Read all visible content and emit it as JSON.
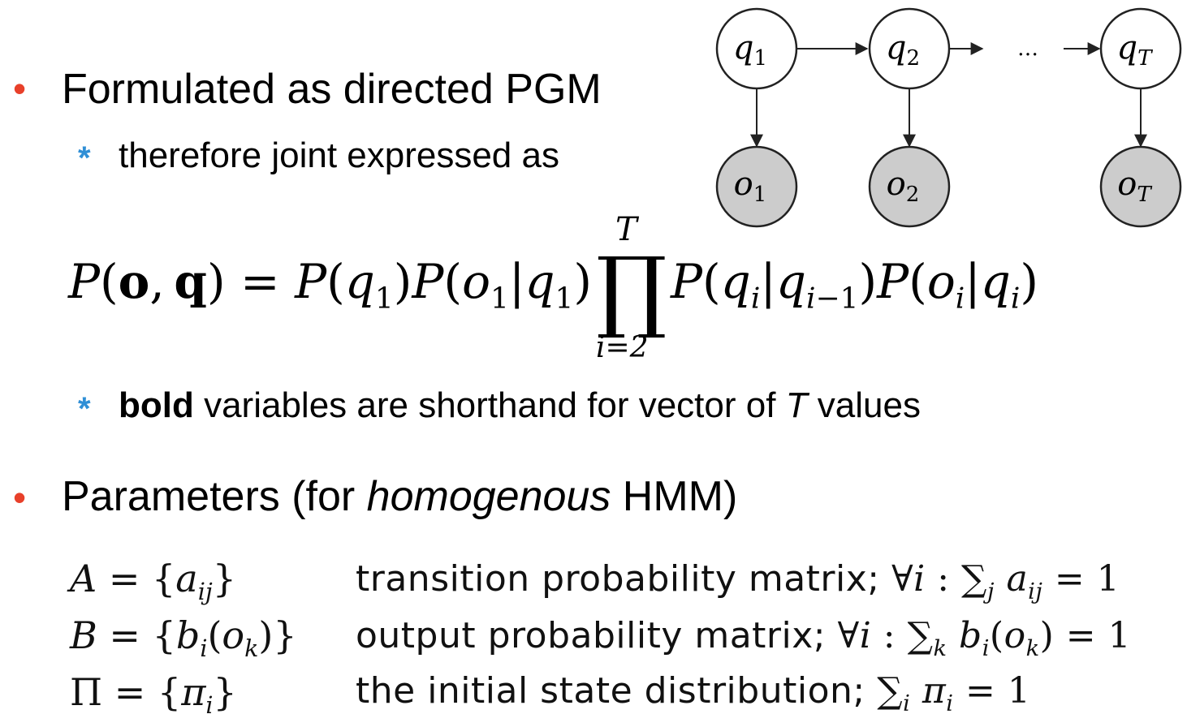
{
  "bullets": {
    "b1": {
      "text": "Formulated as directed PGM"
    },
    "b1_sub": {
      "text": "therefore joint expressed as"
    },
    "b1_sub2": {
      "bold": "bold",
      "pre": " variables are shorthand for vector of ",
      "italic": "T",
      "post": " values"
    },
    "b2": {
      "pre": "Parameters (for ",
      "italic": "homogenous",
      "post": " HMM)"
    }
  },
  "diagram": {
    "hidden": [
      {
        "base": "q",
        "sub": "1"
      },
      {
        "base": "q",
        "sub": "2"
      },
      {
        "base": "q",
        "sub": "T"
      }
    ],
    "observed": [
      {
        "base": "o",
        "sub": "1"
      },
      {
        "base": "o",
        "sub": "2"
      },
      {
        "base": "o",
        "sub": "T"
      }
    ],
    "ellipsis": "…",
    "colors": {
      "hidden_fill": "#ffffff",
      "observed_fill": "#cccccc",
      "stroke": "#222222"
    }
  },
  "joint_equation": {
    "lhs": {
      "P": "P",
      "o": "o",
      "q": "q"
    },
    "prod_upper": "T",
    "prod_lower": "i=2"
  },
  "parameters": [
    {
      "symbol_lhs": "A",
      "symbol_rhs": "a",
      "sub": "ij",
      "description": "transition probability matrix;"
    },
    {
      "symbol_lhs": "B",
      "symbol_rhs": "b",
      "sub": "i",
      "description": "output probability matrix;"
    },
    {
      "symbol_lhs": "Π",
      "symbol_rhs": "π",
      "sub": "i",
      "description": "the initial state distribution;"
    }
  ],
  "colors": {
    "bullet_dot": "#e8402a",
    "bullet_star": "#2f8fd6"
  }
}
